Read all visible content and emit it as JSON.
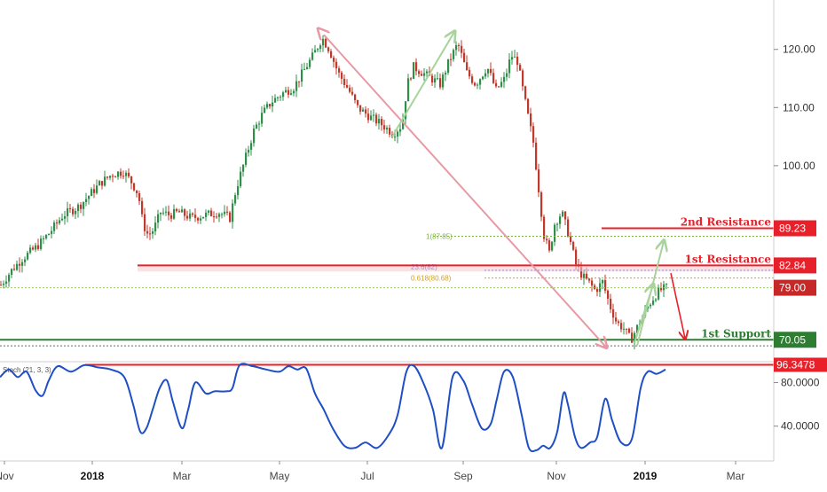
{
  "colors": {
    "up": "#2f8f4a",
    "down": "#c0392b",
    "resistance": "#e8202a",
    "support": "#2e7d32",
    "stoch": "#1f4fc4",
    "trend_arrow": "#e79aa5",
    "swing_arrow": "#a8d39a",
    "last_price": "#c62828",
    "grid": "#dddddd",
    "axis_text": "#333333"
  },
  "chart_data": [
    {
      "type": "candlestick",
      "title": "",
      "price_axis": {
        "ticks": [
          120,
          110,
          100
        ],
        "ylim": [
          67.5,
          128.5
        ]
      },
      "time_axis": {
        "labels": [
          "Nov",
          "2018",
          "Mar",
          "May",
          "Jul",
          "Sep",
          "Nov",
          "2019",
          "Mar"
        ],
        "bold": [
          "2018",
          "2019"
        ]
      },
      "close_anchors": [
        [
          0,
          79.5
        ],
        [
          12,
          82
        ],
        [
          24,
          84
        ],
        [
          40,
          86
        ],
        [
          55,
          88.5
        ],
        [
          70,
          91.5
        ],
        [
          88,
          93
        ],
        [
          100,
          95
        ],
        [
          112,
          97
        ],
        [
          125,
          98.5
        ],
        [
          138,
          99
        ],
        [
          148,
          97
        ],
        [
          155,
          95
        ],
        [
          160,
          90
        ],
        [
          166,
          88
        ],
        [
          172,
          89
        ],
        [
          180,
          92
        ],
        [
          190,
          91.5
        ],
        [
          200,
          92
        ],
        [
          215,
          91
        ],
        [
          230,
          91.5
        ],
        [
          245,
          92
        ],
        [
          258,
          91
        ],
        [
          265,
          96
        ],
        [
          275,
          101
        ],
        [
          285,
          106
        ],
        [
          295,
          109
        ],
        [
          305,
          111
        ],
        [
          318,
          112.5
        ],
        [
          330,
          113.5
        ],
        [
          340,
          116
        ],
        [
          352,
          119
        ],
        [
          362,
          122
        ],
        [
          370,
          120
        ],
        [
          380,
          116
        ],
        [
          392,
          113
        ],
        [
          402,
          110
        ],
        [
          415,
          108.5
        ],
        [
          430,
          107
        ],
        [
          442,
          105.5
        ],
        [
          452,
          107
        ],
        [
          458,
          114
        ],
        [
          465,
          117
        ],
        [
          475,
          116
        ],
        [
          485,
          115
        ],
        [
          495,
          114
        ],
        [
          505,
          118
        ],
        [
          515,
          121
        ],
        [
          525,
          116
        ],
        [
          535,
          114
        ],
        [
          548,
          117
        ],
        [
          558,
          113
        ],
        [
          568,
          115
        ],
        [
          575,
          119
        ],
        [
          582,
          118
        ],
        [
          592,
          110
        ],
        [
          600,
          104
        ],
        [
          606,
          96
        ],
        [
          612,
          88
        ],
        [
          618,
          85
        ],
        [
          624,
          90
        ],
        [
          632,
          92
        ],
        [
          640,
          88
        ],
        [
          648,
          83
        ],
        [
          655,
          81
        ],
        [
          662,
          80
        ],
        [
          670,
          78.5
        ],
        [
          678,
          80
        ],
        [
          686,
          76
        ],
        [
          694,
          73
        ],
        [
          702,
          72
        ],
        [
          710,
          70
        ],
        [
          718,
          72.5
        ],
        [
          726,
          75
        ],
        [
          734,
          77
        ],
        [
          742,
          78.5
        ],
        [
          750,
          79
        ]
      ],
      "horizontal_levels": [
        {
          "label": "2nd Resistance",
          "value": 89.23,
          "tag": "89.23"
        },
        {
          "label": "1st Resistance",
          "value": 82.84,
          "tag": "82.84"
        },
        {
          "label": "1st Support",
          "value": 70.05,
          "tag": "70.05"
        }
      ],
      "last_price": {
        "value": 79.0,
        "tag": "79.00"
      },
      "fib_levels": [
        {
          "label": "1(87.85)",
          "value": 87.85
        },
        {
          "label": "23.6(82)",
          "value": 82.0
        },
        {
          "label": "0.618(80.68)",
          "value": 80.68
        }
      ],
      "resistance_zone": [
        81.8,
        82.84
      ],
      "dotted_lows": [
        69.0
      ],
      "arrows": [
        {
          "kind": "trend",
          "from": [
            365,
            122.5
          ],
          "to": [
            683,
            68.8
          ]
        },
        {
          "kind": "swing",
          "from": [
            442,
            105
          ],
          "to": [
            512,
            123
          ]
        },
        {
          "kind": "swing",
          "from": [
            718,
            69
          ],
          "to": [
            748,
            87
          ]
        },
        {
          "kind": "swing",
          "from": [
            715,
            69.5
          ],
          "to": [
            736,
            79.5
          ]
        },
        {
          "kind": "projection",
          "from": [
            756,
            81.5
          ],
          "to": [
            772,
            70.3
          ]
        }
      ]
    },
    {
      "type": "line",
      "title": "Stoch (21, 3, 3)",
      "y_ticks": [
        80,
        40
      ],
      "y_tick_labels": [
        "80.0000",
        "40.0000"
      ],
      "ylim": [
        8,
        100
      ],
      "level": {
        "value": 96.3478,
        "tag": "96.3478"
      },
      "series": [
        {
          "name": "",
          "points": [
            [
              0,
              85
            ],
            [
              10,
              92
            ],
            [
              20,
              85
            ],
            [
              30,
              90
            ],
            [
              40,
              73
            ],
            [
              48,
              68
            ],
            [
              55,
              82
            ],
            [
              65,
              95
            ],
            [
              80,
              90
            ],
            [
              95,
              96
            ],
            [
              110,
              94
            ],
            [
              125,
              92
            ],
            [
              140,
              85
            ],
            [
              150,
              60
            ],
            [
              158,
              35
            ],
            [
              165,
              38
            ],
            [
              172,
              55
            ],
            [
              180,
              75
            ],
            [
              188,
              82
            ],
            [
              195,
              62
            ],
            [
              205,
              38
            ],
            [
              212,
              55
            ],
            [
              220,
              80
            ],
            [
              232,
              70
            ],
            [
              242,
              72
            ],
            [
              255,
              72
            ],
            [
              262,
              75
            ],
            [
              270,
              96
            ],
            [
              285,
              95
            ],
            [
              300,
              92
            ],
            [
              315,
              90
            ],
            [
              325,
              95
            ],
            [
              335,
              92
            ],
            [
              345,
              93
            ],
            [
              355,
              70
            ],
            [
              365,
              55
            ],
            [
              375,
              38
            ],
            [
              388,
              22
            ],
            [
              400,
              20
            ],
            [
              412,
              25
            ],
            [
              425,
              20
            ],
            [
              438,
              32
            ],
            [
              448,
              50
            ],
            [
              458,
              90
            ],
            [
              467,
              95
            ],
            [
              478,
              78
            ],
            [
              488,
              55
            ],
            [
              498,
              20
            ],
            [
              510,
              85
            ],
            [
              522,
              82
            ],
            [
              532,
              60
            ],
            [
              543,
              38
            ],
            [
              553,
              42
            ],
            [
              560,
              65
            ],
            [
              568,
              90
            ],
            [
              578,
              85
            ],
            [
              588,
              50
            ],
            [
              596,
              20
            ],
            [
              605,
              18
            ],
            [
              612,
              22
            ],
            [
              620,
              20
            ],
            [
              628,
              35
            ],
            [
              635,
              70
            ],
            [
              640,
              60
            ],
            [
              648,
              30
            ],
            [
              655,
              20
            ],
            [
              665,
              25
            ],
            [
              673,
              30
            ],
            [
              682,
              65
            ],
            [
              690,
              45
            ],
            [
              700,
              25
            ],
            [
              712,
              28
            ],
            [
              722,
              75
            ],
            [
              730,
              90
            ],
            [
              740,
              88
            ],
            [
              750,
              92
            ]
          ]
        }
      ]
    }
  ]
}
